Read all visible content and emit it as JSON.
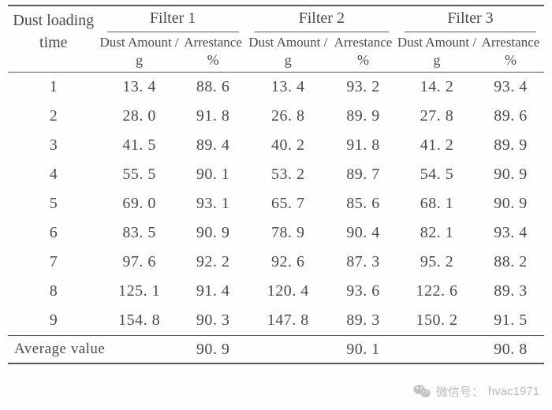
{
  "table": {
    "header": {
      "row_label_line1": "Dust loading",
      "row_label_line2": "time",
      "groups": [
        "Filter 1",
        "Filter 2",
        "Filter 3"
      ],
      "sub_pair": {
        "dust_label": "Dust Amount /",
        "arr_label": "Arrestance"
      },
      "units": {
        "dust": "g",
        "arr": "%"
      }
    },
    "col_widths_pct": [
      17,
      15,
      12.5,
      15.5,
      12.5,
      15,
      12.5
    ],
    "header_fontsize_pt": 15,
    "subheader_fontsize_pt": 12.5,
    "body_fontsize_pt": 15,
    "rule_color": "#5a5859",
    "text_color": "#4c4a4b",
    "background_color": "#fcfeff",
    "rows": [
      {
        "t": "1",
        "f1d": "13. 4",
        "f1a": "88. 6",
        "f2d": "13. 4",
        "f2a": "93. 2",
        "f3d": "14. 2",
        "f3a": "93. 4"
      },
      {
        "t": "2",
        "f1d": "28. 0",
        "f1a": "91. 8",
        "f2d": "26. 8",
        "f2a": "89. 9",
        "f3d": "27. 8",
        "f3a": "89. 6"
      },
      {
        "t": "3",
        "f1d": "41. 5",
        "f1a": "89. 4",
        "f2d": "40. 2",
        "f2a": "91. 8",
        "f3d": "41. 2",
        "f3a": "89. 9"
      },
      {
        "t": "4",
        "f1d": "55. 5",
        "f1a": "90. 1",
        "f2d": "53. 2",
        "f2a": "89. 7",
        "f3d": "54. 5",
        "f3a": "90. 9"
      },
      {
        "t": "5",
        "f1d": "69. 0",
        "f1a": "93. 1",
        "f2d": "65. 7",
        "f2a": "85. 6",
        "f3d": "68. 1",
        "f3a": "90. 9"
      },
      {
        "t": "6",
        "f1d": "83. 5",
        "f1a": "90. 9",
        "f2d": "78. 9",
        "f2a": "90. 4",
        "f3d": "82. 1",
        "f3a": "93. 4"
      },
      {
        "t": "7",
        "f1d": "97. 6",
        "f1a": "92. 2",
        "f2d": "92. 6",
        "f2a": "87. 3",
        "f3d": "95. 2",
        "f3a": "88. 2"
      },
      {
        "t": "8",
        "f1d": "125. 1",
        "f1a": "91. 4",
        "f2d": "120. 4",
        "f2a": "93. 6",
        "f3d": "122. 6",
        "f3a": "89. 3"
      },
      {
        "t": "9",
        "f1d": "154. 8",
        "f1a": "90. 3",
        "f2d": "147. 8",
        "f2a": "89. 3",
        "f3d": "150. 2",
        "f3a": "91. 5"
      }
    ],
    "average": {
      "label": "Average value",
      "f1a": "90. 9",
      "f2a": "90. 1",
      "f3a": "90. 8"
    }
  },
  "footer": {
    "icon": "wechat-icon",
    "icon_color": "#c3c6c5",
    "label": "微信号：",
    "handle": "hvac1971",
    "text_color": "#b9bcbb",
    "fontsize_pt": 11
  }
}
